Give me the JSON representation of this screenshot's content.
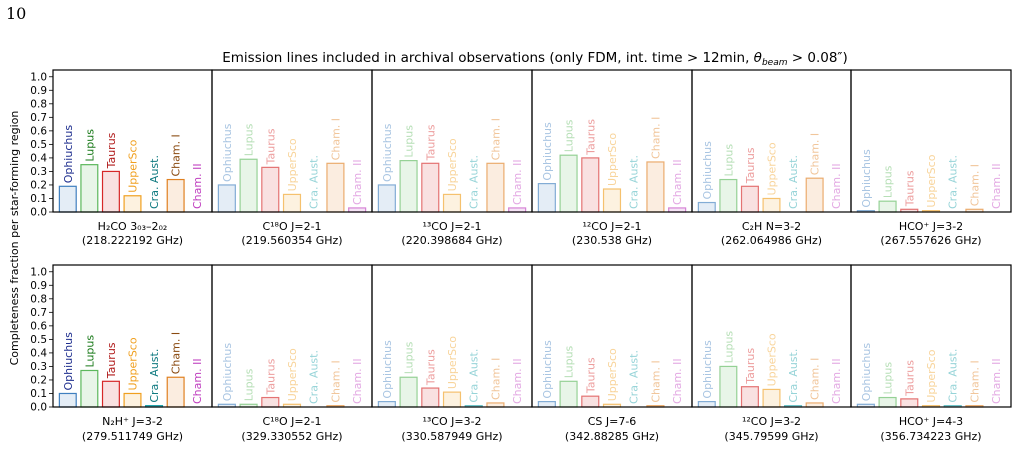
{
  "page_number": "10",
  "figure": {
    "title_prefix": "Emission lines included in archival observations (only FDM, int. time > 12min, ",
    "title_theta": "θ",
    "title_sub": "beam",
    "title_suffix": " > 0.08″)",
    "ylabel": "Completeness fraction per star-forming region",
    "yticks": [
      "0.0",
      "0.1",
      "0.2",
      "0.3",
      "0.4",
      "0.5",
      "0.6",
      "0.7",
      "0.8",
      "0.9",
      "1.0"
    ]
  },
  "colors": {
    "Ophiuchus": "#3f7fbf",
    "Lupus": "#5cb85c",
    "Taurus": "#d62728",
    "UpperSco": "#f0a020",
    "Cra. Aust.": "#17a0a8",
    "Cham. I": "#e08020",
    "Cham. II": "#c040c0"
  },
  "chart_data": {
    "type": "bar",
    "ylim": [
      0,
      1.05
    ],
    "ylabel": "Completeness fraction per star-forming region",
    "categories": [
      "Ophiuchus",
      "Lupus",
      "Taurus",
      "UpperSco",
      "Cra. Aust.",
      "Cham. I",
      "Cham. II"
    ],
    "panels": [
      {
        "line": "H₂CO 3₀₃–2₀₂",
        "freq": "(218.222192 GHz)",
        "values": [
          0.19,
          0.35,
          0.3,
          0.12,
          0.0,
          0.24,
          0.0
        ],
        "faded": false
      },
      {
        "line": "C¹⁸O J=2-1",
        "freq": "(219.560354 GHz)",
        "values": [
          0.2,
          0.39,
          0.33,
          0.13,
          0.0,
          0.36,
          0.03
        ],
        "faded": true
      },
      {
        "line": "¹³CO J=2-1",
        "freq": "(220.398684 GHz)",
        "values": [
          0.2,
          0.38,
          0.36,
          0.13,
          0.0,
          0.36,
          0.03
        ],
        "faded": true
      },
      {
        "line": "¹²CO J=2-1",
        "freq": "(230.538 GHz)",
        "values": [
          0.21,
          0.42,
          0.4,
          0.17,
          0.0,
          0.37,
          0.03
        ],
        "faded": true
      },
      {
        "line": "C₂H N=3-2",
        "freq": "(262.064986 GHz)",
        "values": [
          0.07,
          0.24,
          0.19,
          0.1,
          0.0,
          0.25,
          0.0
        ],
        "faded": true
      },
      {
        "line": "HCO⁺ J=3-2",
        "freq": "(267.557626 GHz)",
        "values": [
          0.01,
          0.08,
          0.02,
          0.01,
          0.0,
          0.02,
          0.0
        ],
        "faded": true
      },
      {
        "line": "N₂H⁺ J=3-2",
        "freq": "(279.511749 GHz)",
        "values": [
          0.1,
          0.27,
          0.19,
          0.1,
          0.01,
          0.22,
          0.0
        ],
        "faded": false
      },
      {
        "line": "C¹⁸O J=2-1",
        "freq": "(329.330552 GHz)",
        "values": [
          0.02,
          0.02,
          0.07,
          0.02,
          0.0,
          0.01,
          0.0
        ],
        "faded": true
      },
      {
        "line": "¹³CO J=3-2",
        "freq": "(330.587949 GHz)",
        "values": [
          0.04,
          0.22,
          0.14,
          0.11,
          0.01,
          0.03,
          0.0
        ],
        "faded": true
      },
      {
        "line": "CS J=7-6",
        "freq": "(342.88285 GHz)",
        "values": [
          0.04,
          0.19,
          0.08,
          0.02,
          0.0,
          0.01,
          0.0
        ],
        "faded": true
      },
      {
        "line": "¹²CO J=3-2",
        "freq": "(345.79599 GHz)",
        "values": [
          0.04,
          0.3,
          0.15,
          0.13,
          0.01,
          0.03,
          0.0
        ],
        "faded": true
      },
      {
        "line": "HCO⁺ J=4-3",
        "freq": "(356.734223 GHz)",
        "values": [
          0.02,
          0.07,
          0.06,
          0.01,
          0.01,
          0.01,
          0.0
        ],
        "faded": true
      }
    ]
  }
}
